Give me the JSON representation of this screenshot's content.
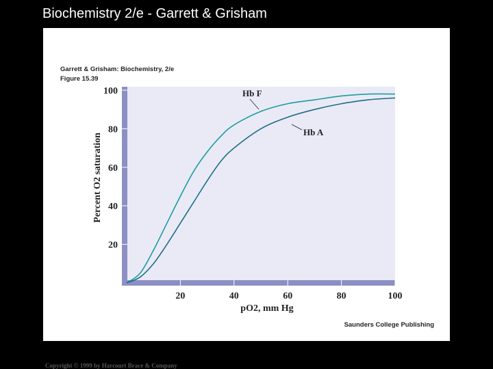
{
  "page": {
    "title": "Biochemistry 2/e - Garrett & Grisham",
    "copyright": "Copyright © 1999 by Harcourt Brace & Company"
  },
  "chart_data": {
    "type": "line",
    "source": "Garrett & Grisham: Biochemistry, 2/e",
    "figure": "Figure 15.39",
    "publisher": "Saunders College Publishing",
    "x_label": "pO2, mm Hg",
    "y_label": "Percent O2 saturation",
    "x": [
      0,
      5,
      10,
      15,
      20,
      25,
      30,
      35,
      40,
      50,
      60,
      70,
      80,
      90,
      100
    ],
    "series": [
      {
        "name": "Hb F",
        "color": "#1a9c9c",
        "values": [
          0,
          5,
          17,
          31,
          45,
          58,
          68,
          76,
          82,
          89,
          93,
          95,
          97,
          98,
          98
        ]
      },
      {
        "name": "Hb A",
        "color": "#1f6b86",
        "values": [
          0,
          3,
          10,
          20,
          31,
          42,
          53,
          63,
          70,
          80,
          86,
          90,
          93,
          95,
          96
        ]
      }
    ],
    "xlim": [
      0,
      100
    ],
    "ylim": [
      0,
      100
    ],
    "xticks": [
      20,
      40,
      60,
      80,
      100
    ],
    "yticks": [
      20,
      40,
      60,
      80,
      100
    ]
  }
}
